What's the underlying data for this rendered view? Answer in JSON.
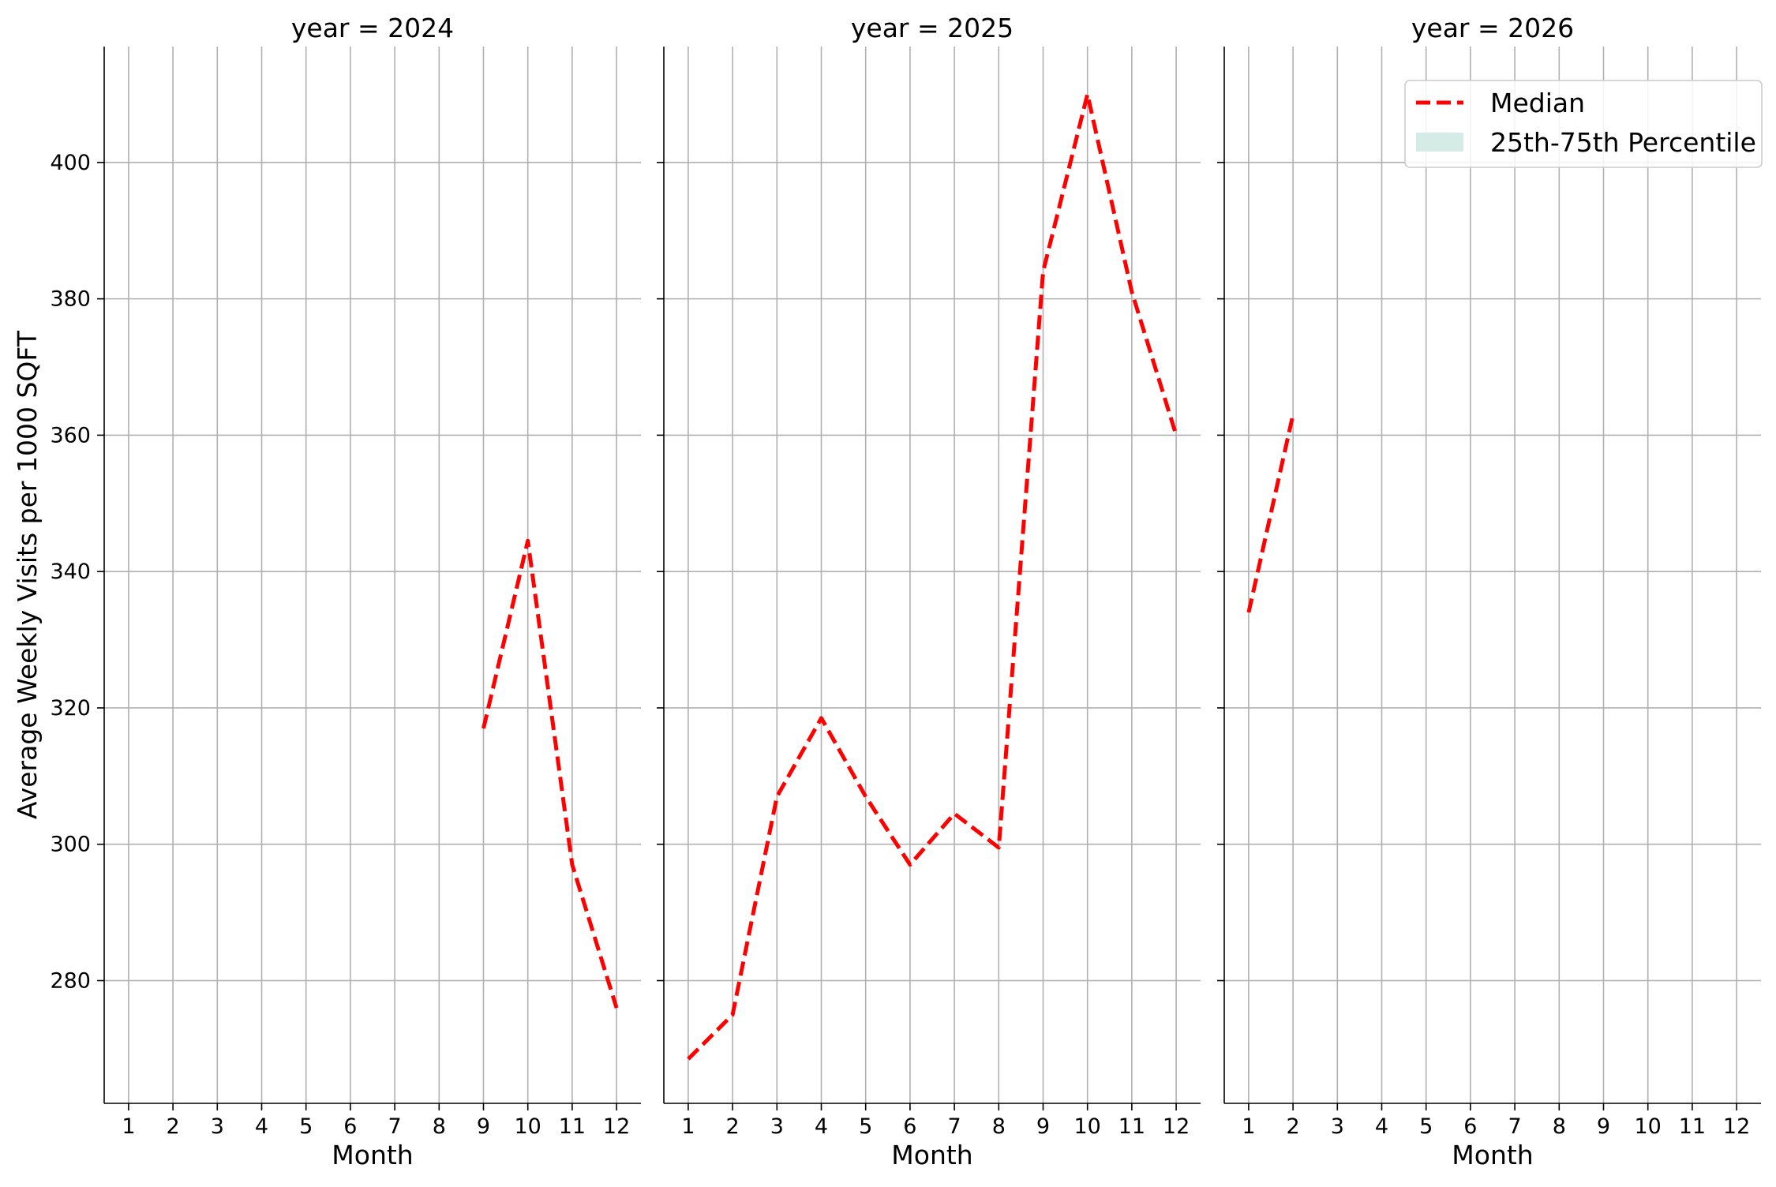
{
  "chart_data": {
    "type": "line",
    "ylabel": "Average Weekly Visits per 1000 SQFT",
    "xlabel": "Month",
    "ylim": [
      262,
      417
    ],
    "yticks": [
      280,
      300,
      320,
      340,
      360,
      380,
      400
    ],
    "xlim": [
      0.45,
      12.55
    ],
    "xticks": [
      1,
      2,
      3,
      4,
      5,
      6,
      7,
      8,
      9,
      10,
      11,
      12
    ],
    "grid": true,
    "line_color": "#ff0000",
    "band_color": "#d5ebe6",
    "legend": {
      "placement": "top-right",
      "entries": [
        "Median",
        "25th-75th Percentile"
      ]
    },
    "panels": [
      {
        "title": "year = 2024",
        "series": [
          {
            "name": "Median",
            "style": "dashed",
            "x": [
              9,
              10,
              11,
              12
            ],
            "y": [
              317,
              344.5,
              297,
              276
            ]
          }
        ]
      },
      {
        "title": "year = 2025",
        "series": [
          {
            "name": "Median",
            "style": "dashed",
            "x": [
              1,
              2,
              3,
              4,
              5,
              6,
              7,
              8,
              9,
              10,
              11,
              12
            ],
            "y": [
              268.5,
              275,
              307,
              318.5,
              307,
              297,
              304.5,
              299.5,
              384,
              410,
              381,
              360
            ]
          }
        ]
      },
      {
        "title": "year = 2026",
        "series": [
          {
            "name": "Median",
            "style": "dashed",
            "x": [
              1,
              2
            ],
            "y": [
              334,
              363
            ]
          }
        ]
      }
    ]
  }
}
